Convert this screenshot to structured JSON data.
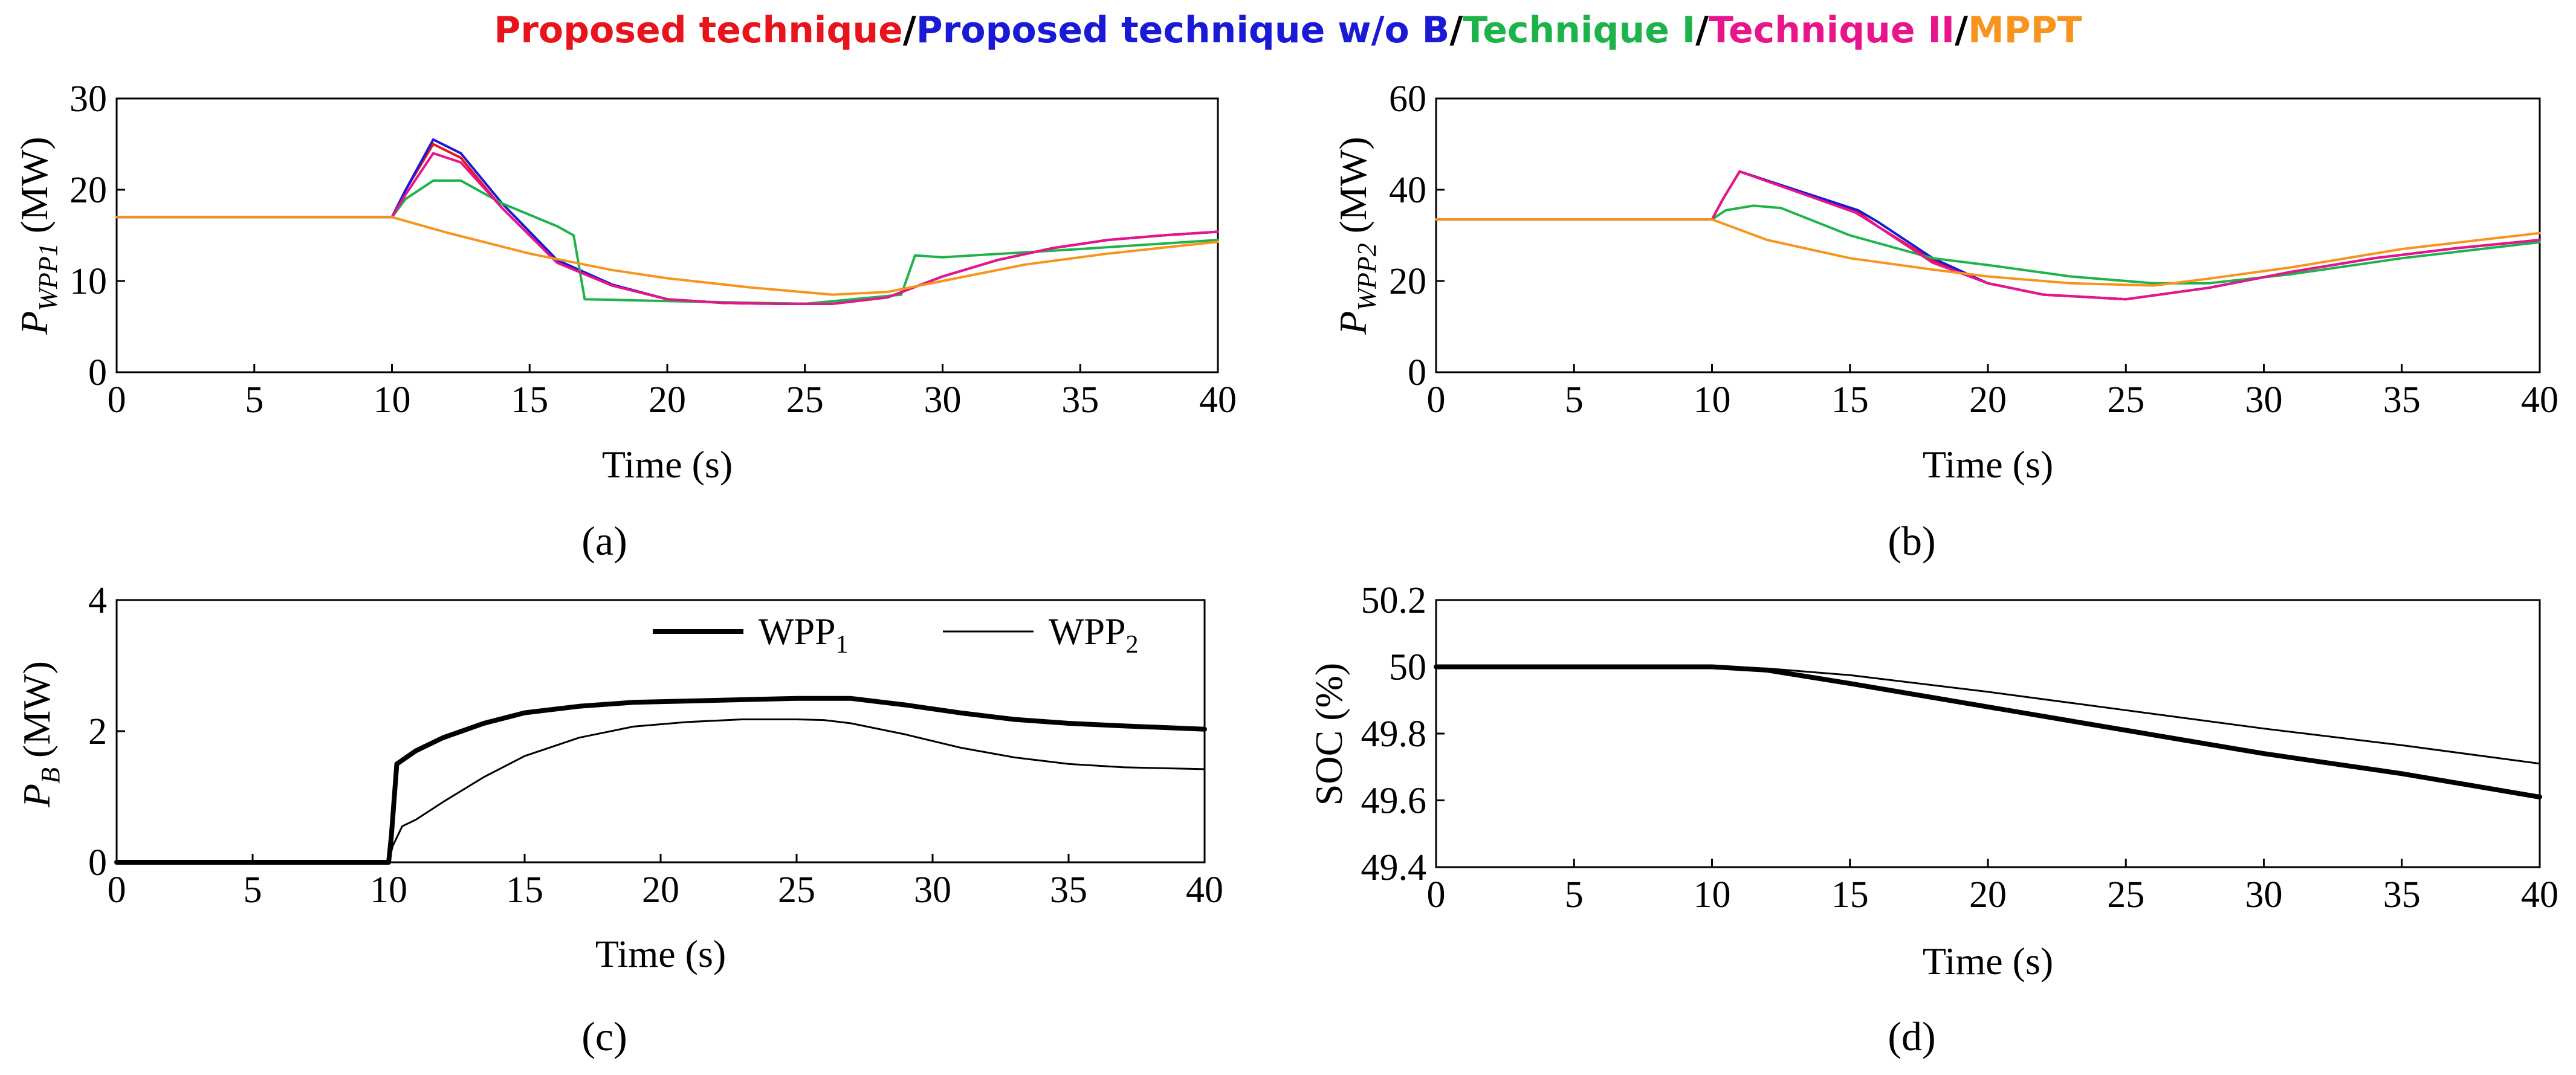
{
  "legend": {
    "items": [
      {
        "label": "Proposed technique",
        "color": "#e8141d"
      },
      {
        "label": "Proposed technique w/o B",
        "color": "#1a1ad6"
      },
      {
        "label": "Technique I",
        "color": "#1db34a"
      },
      {
        "label": "Technique II",
        "color": "#e8148c"
      },
      {
        "label": "MPPT",
        "color": "#f7941d"
      }
    ],
    "separator": "/"
  },
  "chart_data": [
    {
      "type": "line",
      "panel_label": "(a)",
      "xlabel": "Time (s)",
      "ylabel_main": "P",
      "ylabel_sub": "WPP1",
      "ylabel_unit": " (MW)",
      "xlim": [
        0,
        40
      ],
      "ylim": [
        0,
        30
      ],
      "xticks": [
        "0",
        "5",
        "10",
        "15",
        "20",
        "25",
        "30",
        "35",
        "40"
      ],
      "yticks": [
        "0",
        "10",
        "20",
        "30"
      ],
      "series": [
        {
          "name": "Proposed technique",
          "color": "#e8141d",
          "width": 4,
          "x": [
            0,
            10,
            10.5,
            11.5,
            12.5,
            14,
            16,
            18,
            20,
            22,
            24,
            26,
            28,
            30,
            32,
            34,
            36,
            38,
            40
          ],
          "y": [
            17,
            17,
            20,
            25,
            23.5,
            18,
            12,
            9.5,
            8,
            7.6,
            7.5,
            7.5,
            8.2,
            10.5,
            12.3,
            13.6,
            14.5,
            15,
            15.4
          ]
        },
        {
          "name": "Proposed technique w/o B",
          "color": "#1a1ad6",
          "width": 4,
          "x": [
            0,
            10,
            10.5,
            11.5,
            12.5,
            14,
            16,
            18,
            20,
            22,
            24,
            26,
            28,
            30,
            32,
            34,
            36,
            38,
            40
          ],
          "y": [
            17,
            17,
            20,
            25.5,
            24,
            18.5,
            12.3,
            9.6,
            8,
            7.6,
            7.5,
            7.5,
            8.2,
            10.5,
            12.3,
            13.6,
            14.5,
            15,
            15.4
          ]
        },
        {
          "name": "Technique I",
          "color": "#1db34a",
          "width": 4,
          "x": [
            0,
            10,
            10.5,
            11.5,
            12.5,
            14,
            16,
            16.6,
            17,
            20,
            25,
            28.5,
            29,
            30,
            35,
            40
          ],
          "y": [
            17,
            17,
            19,
            21,
            21,
            18.5,
            16,
            15,
            8,
            7.8,
            7.5,
            8.5,
            12.8,
            12.6,
            13.5,
            14.5
          ]
        },
        {
          "name": "Technique II",
          "color": "#e8148c",
          "width": 4,
          "x": [
            0,
            10,
            10.5,
            11.5,
            12.5,
            14,
            16,
            18,
            20,
            22,
            24,
            26,
            28,
            30,
            32,
            34,
            36,
            38,
            40
          ],
          "y": [
            17,
            17,
            19.5,
            24,
            23,
            18,
            12,
            9.5,
            8,
            7.6,
            7.5,
            7.5,
            8.2,
            10.5,
            12.3,
            13.6,
            14.5,
            15,
            15.4
          ]
        },
        {
          "name": "MPPT",
          "color": "#f7941d",
          "width": 4,
          "x": [
            0,
            10,
            12,
            15,
            18,
            20,
            23,
            26,
            28,
            30,
            33,
            36,
            40
          ],
          "y": [
            17,
            17,
            15.3,
            13,
            11.2,
            10.3,
            9.3,
            8.5,
            8.8,
            10,
            11.8,
            13,
            14.3
          ]
        }
      ]
    },
    {
      "type": "line",
      "panel_label": "(b)",
      "xlabel": "Time (s)",
      "ylabel_main": "P",
      "ylabel_sub": "WPP2",
      "ylabel_unit": " (MW)",
      "xlim": [
        0,
        40
      ],
      "ylim": [
        0,
        60
      ],
      "xticks": [
        "0",
        "5",
        "10",
        "15",
        "20",
        "25",
        "30",
        "35",
        "40"
      ],
      "yticks": [
        "0",
        "20",
        "40",
        "60"
      ],
      "series": [
        {
          "name": "Proposed technique",
          "color": "#e8141d",
          "width": 4,
          "x": [
            0,
            10,
            10.4,
            11,
            15.3,
            16,
            18,
            20,
            22,
            25,
            28,
            31,
            34,
            37,
            40
          ],
          "y": [
            33.5,
            33.5,
            38,
            44,
            35,
            32,
            24.5,
            19.5,
            17,
            16,
            18.5,
            22,
            25,
            27.2,
            29
          ]
        },
        {
          "name": "Proposed technique w/o B",
          "color": "#1a1ad6",
          "width": 4,
          "x": [
            0,
            10,
            10.4,
            11,
            15.3,
            16,
            18,
            20,
            22,
            25,
            28,
            31,
            34,
            37,
            40
          ],
          "y": [
            33.5,
            33.5,
            38,
            44,
            35.5,
            33,
            25,
            19.5,
            17,
            16,
            18.5,
            22,
            25,
            27.2,
            29
          ]
        },
        {
          "name": "Technique I",
          "color": "#1db34a",
          "width": 4,
          "x": [
            0,
            10,
            10.5,
            11.5,
            12.5,
            15,
            18,
            20,
            23,
            26,
            28,
            31,
            35,
            40
          ],
          "y": [
            33.5,
            33.5,
            35.5,
            36.5,
            36,
            30,
            25,
            23.5,
            21,
            19.5,
            19.5,
            21.5,
            25,
            28.5
          ]
        },
        {
          "name": "Technique II",
          "color": "#e8148c",
          "width": 4,
          "x": [
            0,
            10,
            10.4,
            11,
            15.2,
            16,
            18,
            20,
            22,
            25,
            28,
            31,
            34,
            37,
            40
          ],
          "y": [
            33.5,
            33.5,
            38,
            44,
            35,
            32,
            24,
            19.5,
            17,
            16,
            18.5,
            22,
            25,
            27.2,
            29
          ]
        },
        {
          "name": "MPPT",
          "color": "#f7941d",
          "width": 4,
          "x": [
            0,
            10,
            12,
            15,
            18,
            20,
            23,
            26,
            28,
            31,
            35,
            40
          ],
          "y": [
            33.5,
            33.5,
            29,
            25,
            22.5,
            21,
            19.5,
            19,
            20.5,
            23,
            27,
            30.5
          ]
        }
      ]
    },
    {
      "type": "line",
      "panel_label": "(c)",
      "xlabel": "Time (s)",
      "ylabel_main": "P",
      "ylabel_sub": "B",
      "ylabel_unit": " (MW)",
      "xlim": [
        0,
        40
      ],
      "ylim": [
        0,
        4
      ],
      "xticks": [
        "0",
        "5",
        "10",
        "15",
        "20",
        "25",
        "30",
        "35",
        "40"
      ],
      "yticks": [
        "0",
        "2",
        "4"
      ],
      "legend_items": [
        {
          "label": "WPP",
          "sub": "1"
        },
        {
          "label": "WPP",
          "sub": "2"
        }
      ],
      "series": [
        {
          "name": "WPP1",
          "color": "#000000",
          "width": 8,
          "x": [
            0,
            10,
            10.1,
            10.3,
            11,
            12,
            13.5,
            15,
            17,
            19,
            21,
            23,
            25,
            27,
            29,
            31,
            33,
            35,
            37,
            40
          ],
          "y": [
            0,
            0,
            0.4,
            1.5,
            1.7,
            1.9,
            2.12,
            2.28,
            2.38,
            2.44,
            2.46,
            2.48,
            2.5,
            2.5,
            2.4,
            2.28,
            2.18,
            2.12,
            2.08,
            2.03
          ]
        },
        {
          "name": "WPP2",
          "color": "#000000",
          "width": 3,
          "x": [
            0,
            10,
            10.15,
            10.5,
            11,
            12,
            13.5,
            15,
            17,
            19,
            21,
            23,
            25,
            26,
            27,
            29,
            31,
            33,
            35,
            37,
            40
          ],
          "y": [
            0,
            0,
            0.25,
            0.55,
            0.65,
            0.92,
            1.3,
            1.62,
            1.9,
            2.07,
            2.14,
            2.18,
            2.18,
            2.17,
            2.12,
            1.95,
            1.75,
            1.6,
            1.5,
            1.45,
            1.42
          ]
        }
      ]
    },
    {
      "type": "line",
      "panel_label": "(d)",
      "xlabel": "Time (s)",
      "ylabel": "SOC (%)",
      "xlim": [
        0,
        40
      ],
      "ylim": [
        49.4,
        50.2
      ],
      "xticks": [
        "0",
        "5",
        "10",
        "15",
        "20",
        "25",
        "30",
        "35",
        "40"
      ],
      "yticks": [
        "49.4",
        "49.6",
        "49.8",
        "50",
        "50.2"
      ],
      "series": [
        {
          "name": "WPP1",
          "color": "#000000",
          "width": 8,
          "x": [
            0,
            5,
            10,
            12,
            15,
            20,
            25,
            30,
            35,
            40
          ],
          "y": [
            50.0,
            50.0,
            50.0,
            49.99,
            49.95,
            49.88,
            49.81,
            49.74,
            49.68,
            49.61
          ]
        },
        {
          "name": "WPP2",
          "color": "#000000",
          "width": 3,
          "x": [
            0,
            5,
            10,
            12,
            15,
            20,
            25,
            30,
            35,
            40
          ],
          "y": [
            50.0,
            50.0,
            50.0,
            49.995,
            49.975,
            49.925,
            49.87,
            49.815,
            49.765,
            49.71
          ]
        }
      ]
    }
  ]
}
